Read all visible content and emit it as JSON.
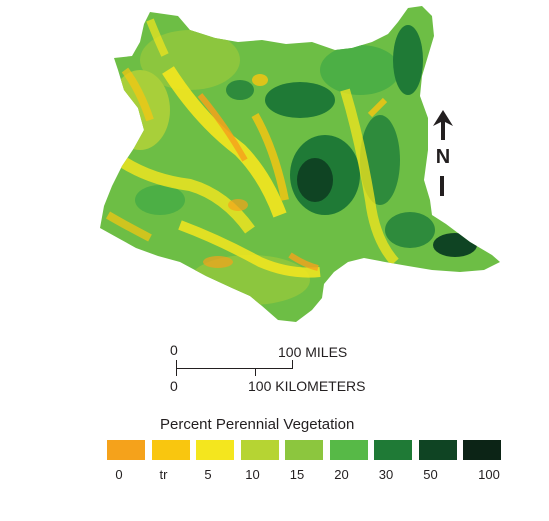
{
  "map": {
    "north_label": "N",
    "scale": {
      "miles_zero": "0",
      "miles_label": "100 MILES",
      "km_zero": "0",
      "km_label": "100 KILOMETERS"
    },
    "legend": {
      "title": "Percent Perennial Vegetation",
      "classes": [
        {
          "label": "0",
          "color": "#f5a21b"
        },
        {
          "label": "tr",
          "color": "#f9c60f"
        },
        {
          "label": "5",
          "color": "#f4e61e"
        },
        {
          "label": "10",
          "color": "#b6d433"
        },
        {
          "label": "15",
          "color": "#8cc63e"
        },
        {
          "label": "20",
          "color": "#57b947"
        },
        {
          "label": "30",
          "color": "#1f7a36"
        },
        {
          "label": "50",
          "color": "#0f4423"
        },
        {
          "label": "100",
          "color": "#0c2416"
        }
      ]
    }
  }
}
